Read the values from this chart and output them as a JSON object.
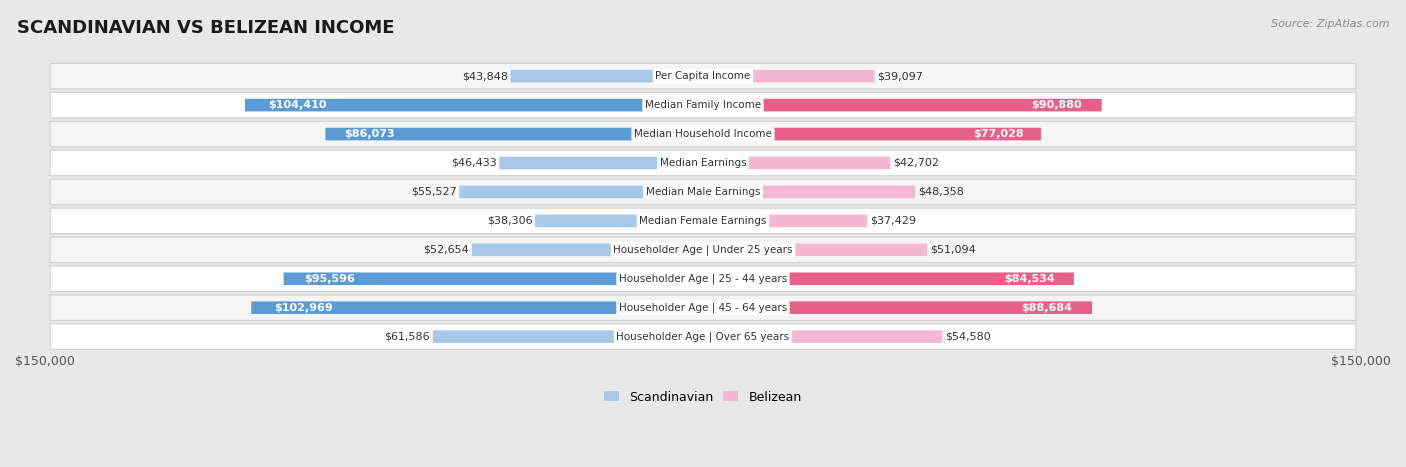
{
  "title": "SCANDINAVIAN VS BELIZEAN INCOME",
  "source": "Source: ZipAtlas.com",
  "categories": [
    "Per Capita Income",
    "Median Family Income",
    "Median Household Income",
    "Median Earnings",
    "Median Male Earnings",
    "Median Female Earnings",
    "Householder Age | Under 25 years",
    "Householder Age | 25 - 44 years",
    "Householder Age | 45 - 64 years",
    "Householder Age | Over 65 years"
  ],
  "scandinavian": [
    43848,
    104410,
    86073,
    46433,
    55527,
    38306,
    52654,
    95596,
    102969,
    61586
  ],
  "belizean": [
    39097,
    90880,
    77028,
    42702,
    48358,
    37429,
    51094,
    84534,
    88684,
    54580
  ],
  "max_val": 150000,
  "scand_color_light": "#a8c8e8",
  "scand_color_dark": "#5b9bd5",
  "belize_color_light": "#f4b8d0",
  "belize_color_dark": "#e8608a",
  "bg_color": "#e8e8e8",
  "row_bg_even": "#f5f5f5",
  "row_bg_odd": "#ffffff",
  "row_border": "#d0d0d0",
  "threshold_white_label": 75000,
  "title_fontsize": 13,
  "source_fontsize": 8,
  "label_fontsize": 8,
  "cat_fontsize": 7.5
}
